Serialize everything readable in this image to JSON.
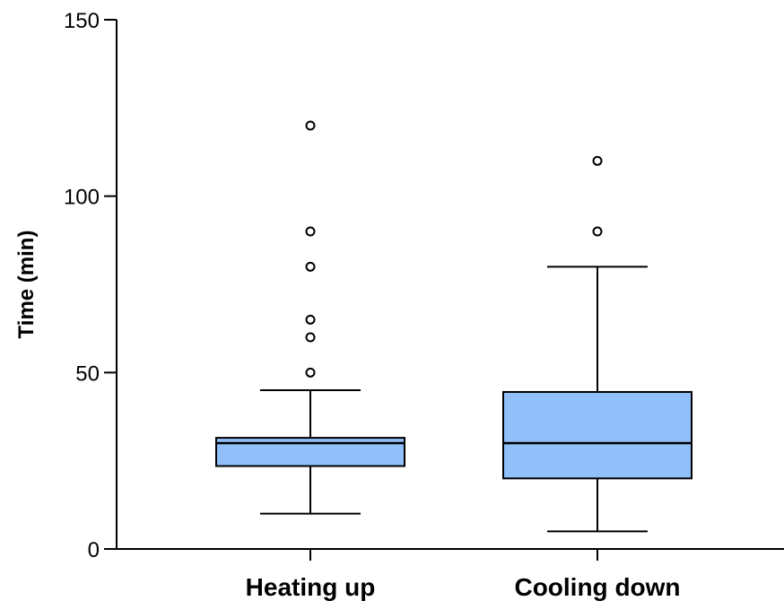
{
  "chart_data": {
    "type": "box",
    "ylabel": "Time (min)",
    "xlabel": "",
    "ylim": [
      0,
      150
    ],
    "yticks": [
      0,
      50,
      100,
      150
    ],
    "grid": false,
    "box_fill": "#90bff9",
    "categories": [
      "Heating up",
      "Cooling down"
    ],
    "boxes": [
      {
        "name": "Heating up",
        "whisker_low": 10,
        "q1": 23.5,
        "median": 30,
        "q3": 31.5,
        "whisker_high": 45,
        "outliers": [
          50,
          60,
          65,
          80,
          90,
          120
        ]
      },
      {
        "name": "Cooling down",
        "whisker_low": 5,
        "q1": 20,
        "median": 30,
        "q3": 44.5,
        "whisker_high": 80,
        "outliers": [
          90,
          110
        ]
      }
    ]
  }
}
